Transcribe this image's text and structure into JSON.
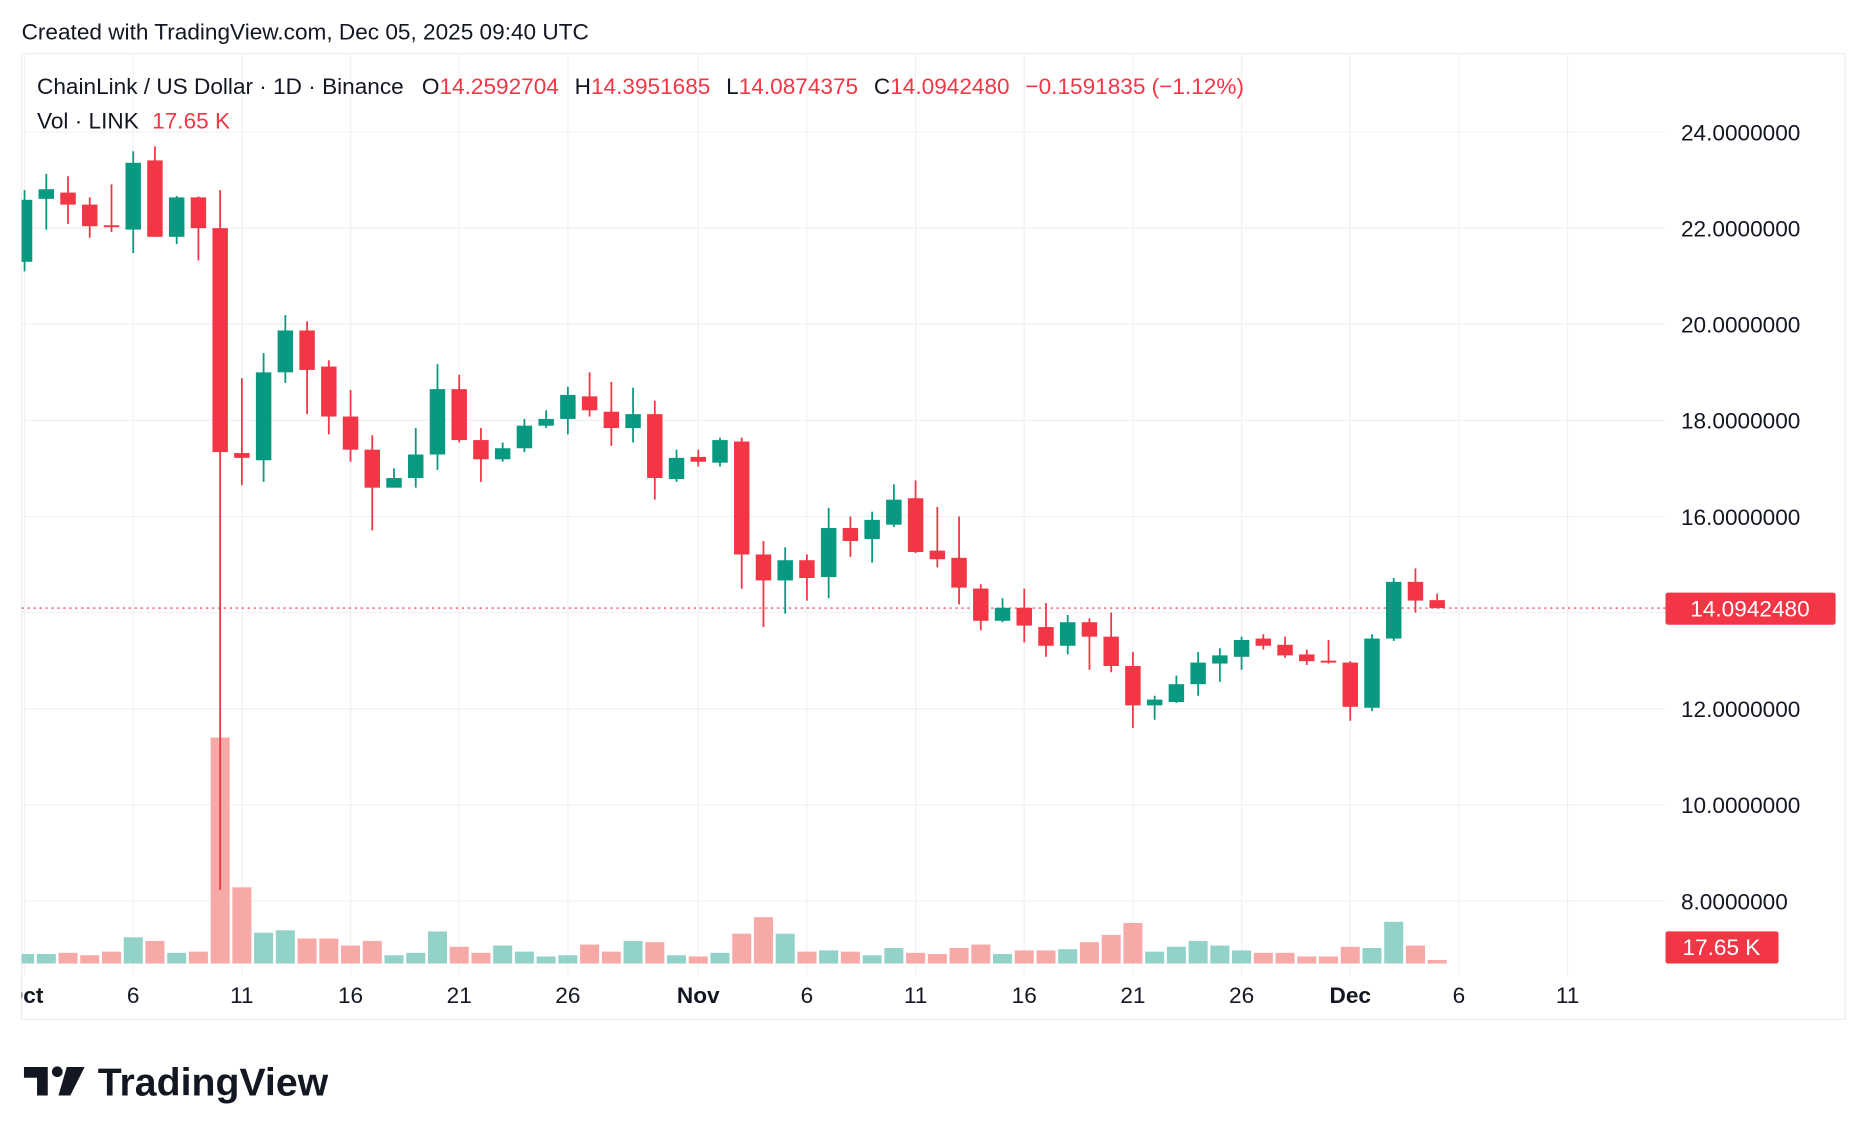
{
  "header": {
    "created": "Created with TradingView.com, Dec 05, 2025 09:40 UTC"
  },
  "legend": {
    "symbol": "ChainLink / US Dollar · 1D · Binance",
    "o_label": "O",
    "o": "14.2592704",
    "h_label": "H",
    "h": "14.3951685",
    "l_label": "L",
    "l": "14.0874375",
    "c_label": "C",
    "c": "14.0942480",
    "change": "−0.1591835 (−1.12%)",
    "vol_label": "Vol · LINK",
    "vol": "17.65 K"
  },
  "price_label": "14.0942480",
  "volume_label": "17.65 K",
  "logo": "TradingView",
  "colors": {
    "up": "#089981",
    "down": "#f23645",
    "vol_up": "#92d2c8",
    "vol_down": "#f7a9a7",
    "text": "#131722",
    "grid": "#f0f1f3"
  },
  "chart_data": {
    "type": "candlestick",
    "title": "ChainLink / US Dollar · 1D · Binance",
    "ylim": [
      7,
      25
    ],
    "y_ticks": [
      "24.0000000",
      "22.0000000",
      "20.0000000",
      "18.0000000",
      "16.0000000",
      "12.0000000",
      "10.0000000",
      "8.0000000"
    ],
    "y_tick_values": [
      24,
      22,
      20,
      18,
      16,
      12,
      10,
      8
    ],
    "x_ticks": [
      {
        "label": "Oct",
        "date": "2025-10-01",
        "month": true
      },
      {
        "label": "6",
        "date": "2025-10-06"
      },
      {
        "label": "11",
        "date": "2025-10-11"
      },
      {
        "label": "16",
        "date": "2025-10-16"
      },
      {
        "label": "21",
        "date": "2025-10-21"
      },
      {
        "label": "26",
        "date": "2025-10-26"
      },
      {
        "label": "Nov",
        "date": "2025-11-01",
        "month": true
      },
      {
        "label": "6",
        "date": "2025-11-06"
      },
      {
        "label": "11",
        "date": "2025-11-11"
      },
      {
        "label": "16",
        "date": "2025-11-16"
      },
      {
        "label": "21",
        "date": "2025-11-21"
      },
      {
        "label": "26",
        "date": "2025-11-26"
      },
      {
        "label": "Dec",
        "date": "2025-12-01",
        "month": true
      },
      {
        "label": "6",
        "date": "2025-12-06"
      },
      {
        "label": "11",
        "date": "2025-12-11"
      }
    ],
    "last_price": 14.094248,
    "columns": [
      "date",
      "open",
      "high",
      "low",
      "close",
      "volume_k"
    ],
    "candles": [
      [
        "2025-10-01",
        21.3,
        22.79,
        21.1,
        22.59,
        47
      ],
      [
        "2025-10-02",
        22.61,
        23.13,
        21.97,
        22.81,
        47
      ],
      [
        "2025-10-03",
        22.74,
        23.08,
        22.09,
        22.49,
        53
      ],
      [
        "2025-10-04",
        22.49,
        22.64,
        21.8,
        22.04,
        41
      ],
      [
        "2025-10-05",
        22.06,
        22.91,
        21.92,
        22.02,
        59
      ],
      [
        "2025-10-06",
        21.97,
        23.6,
        21.48,
        23.36,
        130
      ],
      [
        "2025-10-07",
        23.41,
        23.7,
        21.82,
        21.82,
        112
      ],
      [
        "2025-10-08",
        21.82,
        22.67,
        21.67,
        22.64,
        53
      ],
      [
        "2025-10-09",
        22.64,
        22.66,
        21.33,
        22.0,
        59
      ],
      [
        "2025-10-10",
        22.0,
        22.79,
        8.23,
        17.34,
        1121
      ],
      [
        "2025-10-11",
        17.32,
        18.88,
        16.65,
        17.22,
        378
      ],
      [
        "2025-10-12",
        17.17,
        19.4,
        16.72,
        19.0,
        153
      ],
      [
        "2025-10-13",
        19.0,
        20.19,
        18.78,
        19.87,
        165
      ],
      [
        "2025-10-14",
        19.87,
        20.06,
        18.13,
        19.05,
        124
      ],
      [
        "2025-10-15",
        19.12,
        19.25,
        17.71,
        18.08,
        124
      ],
      [
        "2025-10-16",
        18.08,
        18.63,
        17.14,
        17.39,
        89
      ],
      [
        "2025-10-17",
        17.39,
        17.69,
        15.71,
        16.6,
        112
      ],
      [
        "2025-10-18",
        16.6,
        17.0,
        16.6,
        16.8,
        41
      ],
      [
        "2025-10-19",
        16.8,
        17.84,
        16.6,
        17.29,
        53
      ],
      [
        "2025-10-20",
        17.29,
        19.17,
        16.97,
        18.65,
        159
      ],
      [
        "2025-10-21",
        18.65,
        18.95,
        17.54,
        17.59,
        83
      ],
      [
        "2025-10-22",
        17.59,
        17.84,
        16.72,
        17.19,
        53
      ],
      [
        "2025-10-23",
        17.19,
        17.54,
        17.14,
        17.42,
        89
      ],
      [
        "2025-10-24",
        17.42,
        18.03,
        17.34,
        17.89,
        59
      ],
      [
        "2025-10-25",
        17.89,
        18.21,
        17.84,
        18.03,
        35
      ],
      [
        "2025-10-26",
        18.03,
        18.7,
        17.71,
        18.53,
        41
      ],
      [
        "2025-10-27",
        18.5,
        19.0,
        18.08,
        18.21,
        94
      ],
      [
        "2025-10-28",
        18.18,
        18.8,
        17.47,
        17.84,
        59
      ],
      [
        "2025-10-29",
        17.84,
        18.68,
        17.54,
        18.13,
        112
      ],
      [
        "2025-10-30",
        18.13,
        18.41,
        16.35,
        16.8,
        106
      ],
      [
        "2025-10-31",
        16.78,
        17.39,
        16.72,
        17.22,
        41
      ],
      [
        "2025-11-01",
        17.24,
        17.39,
        17.04,
        17.14,
        35
      ],
      [
        "2025-11-02",
        17.12,
        17.64,
        17.04,
        17.59,
        53
      ],
      [
        "2025-11-03",
        17.56,
        17.64,
        14.5,
        15.21,
        148
      ],
      [
        "2025-11-04",
        15.21,
        15.49,
        13.7,
        14.67,
        230
      ],
      [
        "2025-11-05",
        14.67,
        15.36,
        13.98,
        15.09,
        148
      ],
      [
        "2025-11-06",
        15.09,
        15.21,
        14.25,
        14.72,
        59
      ],
      [
        "2025-11-07",
        14.74,
        16.18,
        14.3,
        15.76,
        65
      ],
      [
        "2025-11-08",
        15.76,
        16.0,
        15.16,
        15.49,
        59
      ],
      [
        "2025-11-09",
        15.53,
        16.1,
        15.04,
        15.93,
        41
      ],
      [
        "2025-11-10",
        15.83,
        16.67,
        15.78,
        16.35,
        77
      ],
      [
        "2025-11-11",
        16.38,
        16.75,
        15.24,
        15.26,
        53
      ],
      [
        "2025-11-12",
        15.29,
        16.2,
        14.94,
        15.11,
        47
      ],
      [
        "2025-11-13",
        15.14,
        16.0,
        14.17,
        14.52,
        77
      ],
      [
        "2025-11-14",
        14.5,
        14.59,
        13.63,
        13.83,
        94
      ],
      [
        "2025-11-15",
        13.83,
        14.3,
        13.8,
        14.1,
        47
      ],
      [
        "2025-11-16",
        14.1,
        14.5,
        13.38,
        13.73,
        65
      ],
      [
        "2025-11-17",
        13.7,
        14.2,
        13.08,
        13.31,
        65
      ],
      [
        "2025-11-18",
        13.31,
        13.95,
        13.13,
        13.8,
        71
      ],
      [
        "2025-11-19",
        13.8,
        13.88,
        12.81,
        13.5,
        106
      ],
      [
        "2025-11-20",
        13.5,
        14.0,
        12.76,
        12.89,
        142
      ],
      [
        "2025-11-21",
        12.89,
        13.18,
        11.6,
        12.07,
        201
      ],
      [
        "2025-11-22",
        12.07,
        12.27,
        11.77,
        12.19,
        59
      ],
      [
        "2025-11-23",
        12.14,
        12.69,
        12.12,
        12.51,
        83
      ],
      [
        "2025-11-24",
        12.51,
        13.18,
        12.27,
        12.96,
        112
      ],
      [
        "2025-11-25",
        12.94,
        13.26,
        12.56,
        13.11,
        89
      ],
      [
        "2025-11-26",
        13.08,
        13.5,
        12.81,
        13.43,
        65
      ],
      [
        "2025-11-27",
        13.46,
        13.55,
        13.23,
        13.31,
        53
      ],
      [
        "2025-11-28",
        13.33,
        13.5,
        13.06,
        13.11,
        53
      ],
      [
        "2025-11-29",
        13.13,
        13.23,
        12.91,
        12.99,
        35
      ],
      [
        "2025-11-30",
        13.0,
        13.43,
        12.94,
        12.96,
        35
      ],
      [
        "2025-12-01",
        12.96,
        12.99,
        11.75,
        12.04,
        83
      ],
      [
        "2025-12-02",
        12.02,
        13.55,
        11.95,
        13.46,
        77
      ],
      [
        "2025-12-03",
        13.46,
        14.72,
        13.41,
        14.64,
        207
      ],
      [
        "2025-12-04",
        14.64,
        14.92,
        14.0,
        14.25,
        89
      ],
      [
        "2025-12-05",
        14.2592704,
        14.3951685,
        14.0874375,
        14.094248,
        17.65
      ]
    ]
  }
}
